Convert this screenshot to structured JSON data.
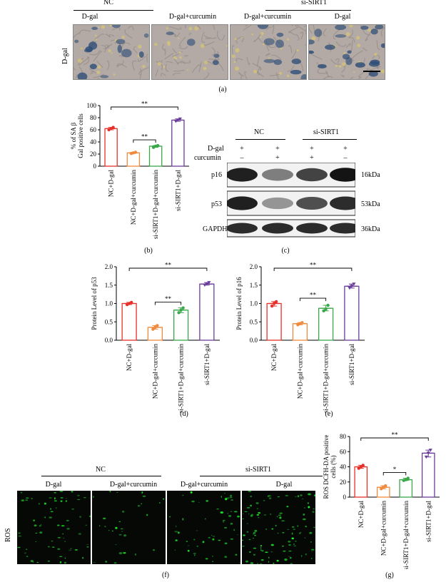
{
  "panel_a": {
    "group1": "NC",
    "group2": "si-SIRT1",
    "row_label": "D-gal",
    "columns": [
      "D-gal",
      "D-gal+curcumin",
      "D-gal+curcumin",
      "D-gal"
    ],
    "caption": "(a)"
  },
  "panel_c": {
    "group1": "NC",
    "group2": "si-SIRT1",
    "row1_label": "D-gal",
    "row1_signs": [
      "+",
      "+",
      "+",
      "+"
    ],
    "row2_label": "curcumin",
    "row2_signs": [
      "–",
      "+",
      "+",
      "–"
    ],
    "bands": [
      {
        "name": "p16",
        "size": "16kDa",
        "intensity": [
          0.95,
          0.55,
          0.8,
          1.0
        ]
      },
      {
        "name": "p53",
        "size": "53kDa",
        "intensity": [
          0.95,
          0.45,
          0.75,
          0.9
        ]
      },
      {
        "name": "GAPDH",
        "size": "36kDa",
        "intensity": [
          0.9,
          0.9,
          0.9,
          0.9
        ]
      }
    ],
    "caption": "(c)"
  },
  "panel_f": {
    "group1": "NC",
    "group2": "si-SIRT1",
    "row_label": "ROS",
    "columns": [
      "D-gal",
      "D-gal+curcumin",
      "D-gal+curcumin",
      "D-gal"
    ],
    "caption": "(f)"
  },
  "chart_data": [
    {
      "id": "b",
      "type": "bar",
      "caption": "(b)",
      "ylabel": "% of SA β Gal positive cells",
      "ylim": [
        0,
        100
      ],
      "yticks": [
        0,
        20,
        40,
        60,
        80,
        100
      ],
      "categories": [
        "NC+D-gal",
        "NC+D-gal+curcumin",
        "si-SIRT1+D-gal+curcumin",
        "si-SIRT1+D-gal"
      ],
      "values": [
        62,
        22,
        33,
        76
      ],
      "points": [
        [
          60,
          62,
          64
        ],
        [
          21,
          22,
          23
        ],
        [
          31,
          33,
          34
        ],
        [
          74,
          76,
          78
        ]
      ],
      "sig": [
        {
          "from": 1,
          "to": 2,
          "label": "**"
        },
        {
          "from": 0,
          "to": 3,
          "label": "**"
        }
      ]
    },
    {
      "id": "d",
      "type": "bar",
      "caption": "(d)",
      "ylabel": "Protein Level of p53",
      "ylim": [
        0,
        2.0
      ],
      "yticks": [
        0,
        0.5,
        1.0,
        1.5,
        2.0
      ],
      "categories": [
        "NC+D-gal",
        "NC+D-gal+curcumin",
        "si-SIRT1+D-gal+curcumin",
        "si-SIRT1+D-gal"
      ],
      "values": [
        1.0,
        0.35,
        0.82,
        1.53
      ],
      "points": [
        [
          0.97,
          1.0,
          1.03
        ],
        [
          0.3,
          0.35,
          0.4
        ],
        [
          0.75,
          0.82,
          0.88
        ],
        [
          1.5,
          1.53,
          1.57
        ]
      ],
      "sig": [
        {
          "from": 1,
          "to": 2,
          "label": "**"
        },
        {
          "from": 0,
          "to": 3,
          "label": "**"
        }
      ]
    },
    {
      "id": "e",
      "type": "bar",
      "caption": "(e)",
      "ylabel": "Protein Level of p16",
      "ylim": [
        0,
        2.0
      ],
      "yticks": [
        0,
        0.5,
        1.0,
        1.5,
        2.0
      ],
      "categories": [
        "NC+D-gal",
        "NC+D-gal+curcumin",
        "si-SIRT1+D-gal+curcumin",
        "si-SIRT1+D-gal"
      ],
      "values": [
        1.0,
        0.45,
        0.87,
        1.47
      ],
      "points": [
        [
          0.93,
          1.0,
          1.05
        ],
        [
          0.42,
          0.45,
          0.48
        ],
        [
          0.8,
          0.85,
          0.95
        ],
        [
          1.42,
          1.47,
          1.53
        ]
      ],
      "sig": [
        {
          "from": 1,
          "to": 2,
          "label": "**"
        },
        {
          "from": 0,
          "to": 3,
          "label": "**"
        }
      ]
    },
    {
      "id": "g",
      "type": "bar",
      "caption": "(g)",
      "ylabel": "ROS DCFH-DA positive cells (%)",
      "ylim": [
        0,
        80
      ],
      "yticks": [
        0,
        20,
        40,
        60,
        80
      ],
      "categories": [
        "NC+D-gal",
        "NC+D-gal+curcumin",
        "si-SIRT1+D-gal+curcumin",
        "si-SIRT1+D-gal"
      ],
      "values": [
        40,
        13,
        23,
        58
      ],
      "points": [
        [
          38,
          40,
          42
        ],
        [
          11,
          13,
          15
        ],
        [
          22,
          23,
          25
        ],
        [
          53,
          58,
          62
        ]
      ],
      "sig": [
        {
          "from": 1,
          "to": 2,
          "label": "*"
        },
        {
          "from": 0,
          "to": 3,
          "label": "**"
        }
      ]
    }
  ],
  "colors": [
    "#e8302a",
    "#f08a3c",
    "#3aa84a",
    "#6a3d9a"
  ]
}
